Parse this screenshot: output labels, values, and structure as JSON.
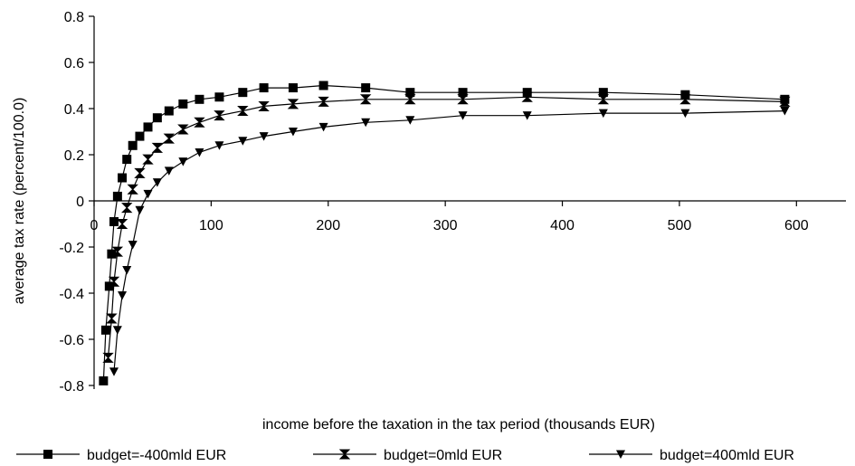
{
  "chart_data": {
    "type": "line",
    "title": "",
    "xlabel": "income before the taxation in the tax period (thousands EUR)",
    "ylabel": "average tax rate (percent/100.0)",
    "xlim": [
      0,
      650
    ],
    "ylim": [
      -0.8,
      0.8
    ],
    "xticks": [
      "0",
      "100",
      "200",
      "300",
      "400",
      "500",
      "600"
    ],
    "yticks": [
      "0.8",
      "0.6",
      "0.4",
      "0.2",
      "0",
      "-0.2",
      "-0.4",
      "-0.6",
      "-0.8"
    ],
    "grid": false,
    "legend_position": "bottom",
    "series": [
      {
        "name": "budget=-400mld EUR",
        "marker": "square",
        "x": [
          8,
          10,
          13,
          15,
          17,
          20,
          24,
          28,
          33,
          39,
          46,
          54,
          64,
          76,
          90,
          107,
          127,
          145,
          170,
          196,
          232,
          270,
          315,
          370,
          435,
          505,
          590
        ],
        "y": [
          -0.78,
          -0.56,
          -0.37,
          -0.23,
          -0.09,
          0.02,
          0.1,
          0.18,
          0.24,
          0.28,
          0.32,
          0.36,
          0.39,
          0.42,
          0.44,
          0.45,
          0.47,
          0.49,
          0.49,
          0.5,
          0.49,
          0.47,
          0.47,
          0.47,
          0.47,
          0.46,
          0.44
        ]
      },
      {
        "name": "budget=0mld EUR",
        "marker": "hourglass",
        "x": [
          12,
          15,
          17,
          20,
          24,
          28,
          33,
          39,
          46,
          54,
          64,
          76,
          90,
          107,
          127,
          145,
          170,
          196,
          232,
          270,
          315,
          370,
          435,
          505,
          590
        ],
        "y": [
          -0.68,
          -0.51,
          -0.35,
          -0.22,
          -0.1,
          -0.03,
          0.05,
          0.12,
          0.18,
          0.23,
          0.27,
          0.31,
          0.34,
          0.37,
          0.39,
          0.41,
          0.42,
          0.43,
          0.44,
          0.44,
          0.44,
          0.45,
          0.44,
          0.44,
          0.43
        ]
      },
      {
        "name": "budget=400mld EUR",
        "marker": "triangle-down",
        "x": [
          17,
          20,
          24,
          28,
          33,
          39,
          46,
          54,
          64,
          76,
          90,
          107,
          127,
          145,
          170,
          196,
          232,
          270,
          315,
          370,
          435,
          505,
          590
        ],
        "y": [
          -0.74,
          -0.56,
          -0.41,
          -0.3,
          -0.19,
          -0.04,
          0.03,
          0.08,
          0.13,
          0.17,
          0.21,
          0.24,
          0.26,
          0.28,
          0.3,
          0.32,
          0.34,
          0.35,
          0.37,
          0.37,
          0.38,
          0.38,
          0.39
        ]
      }
    ]
  }
}
